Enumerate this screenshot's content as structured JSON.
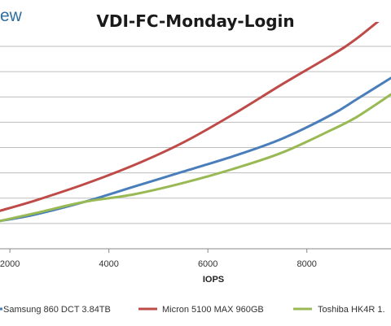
{
  "logo_text": "ew",
  "chart_data": {
    "type": "line",
    "title": "VDI-FC-Monday-Login",
    "xlabel": "IOPS",
    "ylabel": "",
    "x_ticks": [
      2000,
      4000,
      6000,
      8000
    ],
    "xlim": [
      1800,
      9700
    ],
    "ylim": [
      0,
      8
    ],
    "y_gridlines": [
      1,
      2,
      3,
      4,
      5,
      6,
      7,
      8
    ],
    "grid": true,
    "legend_position": "bottom",
    "series": [
      {
        "name": "Samsung 860 DCT 3.84TB",
        "color": "#4a7ebb",
        "points": [
          [
            1800,
            1.1
          ],
          [
            2500,
            1.35
          ],
          [
            3500,
            1.85
          ],
          [
            4500,
            2.45
          ],
          [
            5500,
            3.05
          ],
          [
            6500,
            3.65
          ],
          [
            7500,
            4.35
          ],
          [
            8500,
            5.3
          ],
          [
            9000,
            5.9
          ],
          [
            9700,
            6.75
          ]
        ]
      },
      {
        "name": "Micron 5100 MAX 960GB",
        "color": "#be4b48",
        "points": [
          [
            1800,
            1.5
          ],
          [
            2500,
            1.9
          ],
          [
            3500,
            2.55
          ],
          [
            4500,
            3.3
          ],
          [
            5500,
            4.2
          ],
          [
            6500,
            5.3
          ],
          [
            7500,
            6.5
          ],
          [
            8500,
            7.65
          ],
          [
            9000,
            8.3
          ],
          [
            9700,
            9.4
          ]
        ]
      },
      {
        "name": "Toshiba HK4R 1.",
        "color": "#98b954",
        "points": [
          [
            1800,
            1.1
          ],
          [
            2500,
            1.4
          ],
          [
            3500,
            1.85
          ],
          [
            4500,
            2.15
          ],
          [
            5500,
            2.6
          ],
          [
            6500,
            3.15
          ],
          [
            7500,
            3.8
          ],
          [
            8500,
            4.7
          ],
          [
            9000,
            5.2
          ],
          [
            9700,
            6.1
          ]
        ]
      }
    ]
  }
}
